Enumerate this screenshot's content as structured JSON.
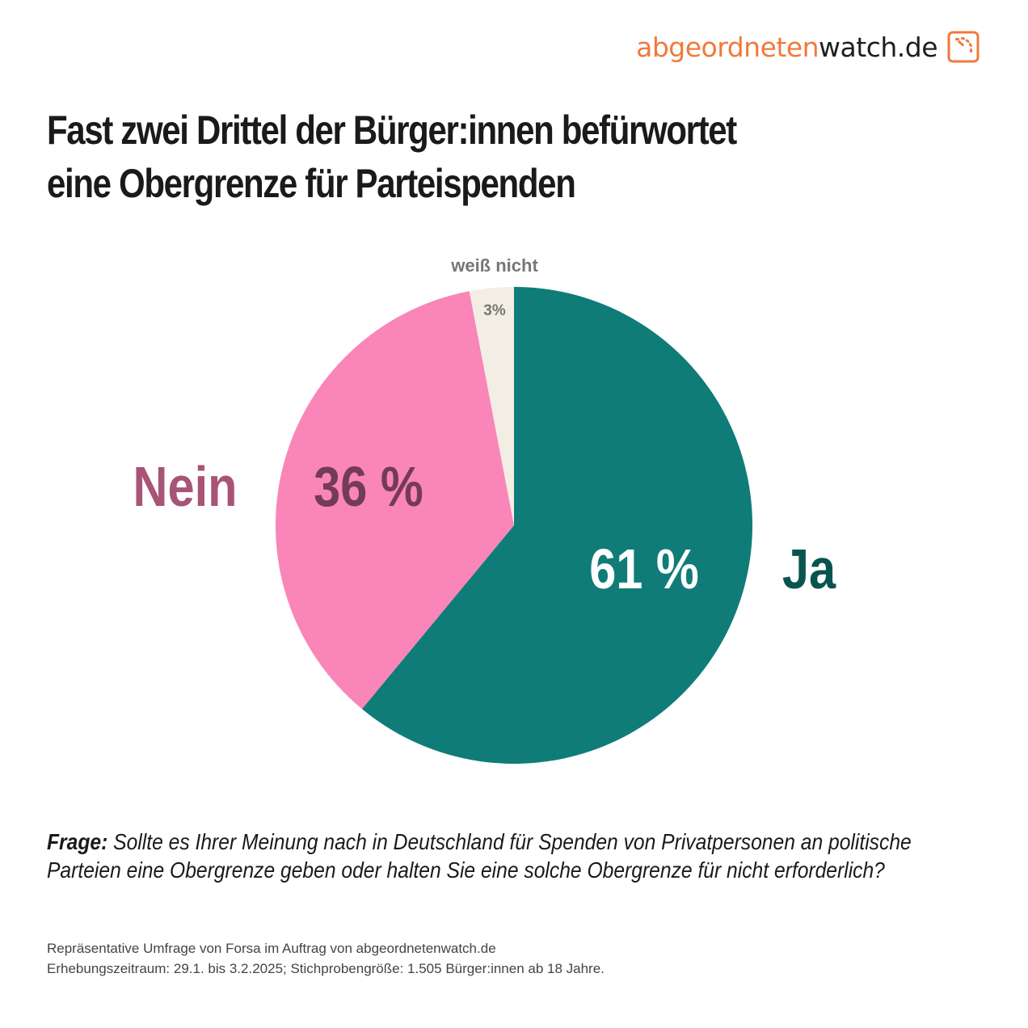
{
  "logo": {
    "part1": "abgeordneten",
    "part2": "watch.de",
    "icon": "gauge-icon",
    "color_orange": "#f07a3c",
    "color_dark": "#1e1e1e"
  },
  "title_line1": "Fast zwei Drittel der Bürger:innen befürwortet",
  "title_line2": "eine Obergrenze für Parteispenden",
  "chart_data": {
    "type": "pie",
    "title": "Fast zwei Drittel der Bürger:innen befürwortet eine Obergrenze für Parteispenden",
    "start_angle": "12 o'clock",
    "direction": "clockwise",
    "slices": [
      {
        "name": "Ja",
        "value": 61,
        "label": "61 %",
        "category_label": "Ja",
        "color": "#107c78",
        "label_color": "#ffffff",
        "category_color": "#0a5450"
      },
      {
        "name": "Nein",
        "value": 36,
        "label": "36 %",
        "category_label": "Nein",
        "color": "#f985b9",
        "label_color": "#733b58",
        "category_color": "#a85477"
      },
      {
        "name": "weiß nicht",
        "value": 3,
        "label": "3%",
        "category_label": "weiß nicht",
        "color": "#f2eee4",
        "label_color": "#777777",
        "category_color": "#777777"
      }
    ]
  },
  "question": {
    "label": "Frage:",
    "text": "Sollte es Ihrer Meinung nach in Deutschland für Spenden von Privatpersonen an politische Parteien eine Obergrenze geben oder halten Sie eine solche Obergrenze für nicht erforderlich?"
  },
  "source": {
    "line1": "Repräsentative Umfrage von Forsa im Auftrag von abgeordnetenwatch.de",
    "line2": "Erhebungszeitraum: 29.1. bis 3.2.2025; Stichprobengröße: 1.505 Bürger:innen ab 18 Jahre."
  }
}
